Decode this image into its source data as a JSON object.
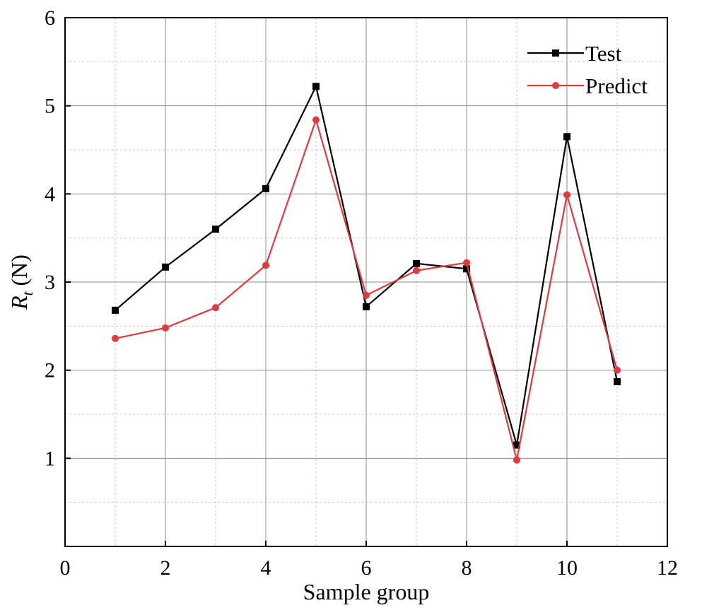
{
  "chart_data": {
    "type": "line",
    "xlabel": "Sample group",
    "ylabel_main": "R",
    "ylabel_sub": "t",
    "ylabel_unit": " (N)",
    "xlim": [
      0,
      12
    ],
    "ylim": [
      0,
      6
    ],
    "xticks": [
      0,
      2,
      4,
      6,
      8,
      10,
      12
    ],
    "yticks": [
      1,
      2,
      3,
      4,
      5,
      6
    ],
    "grid": true,
    "legend_position": "top-right",
    "x": [
      1,
      2,
      3,
      4,
      5,
      6,
      7,
      8,
      9,
      10,
      11
    ],
    "series": [
      {
        "name": "Test",
        "color": "#000000",
        "marker": "square",
        "values": [
          2.68,
          3.17,
          3.6,
          4.06,
          5.22,
          2.72,
          3.21,
          3.15,
          1.15,
          4.65,
          1.87
        ]
      },
      {
        "name": "Predict",
        "color": "#e0393e",
        "marker": "circle",
        "values": [
          2.36,
          2.48,
          2.71,
          3.19,
          4.84,
          2.85,
          3.13,
          3.22,
          0.98,
          3.99,
          2.0
        ]
      }
    ]
  }
}
